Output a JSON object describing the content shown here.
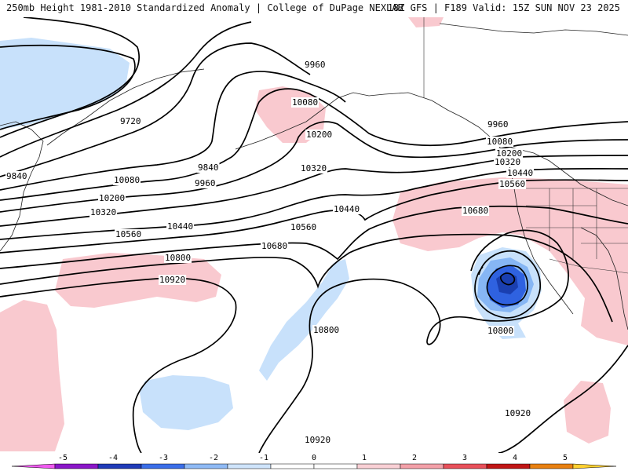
{
  "header": {
    "title": "250mb Height 1981-2010 Standardized Anomaly | College of DuPage NEXLAB",
    "run": "18Z GFS | F189 Valid: 15Z SUN NOV 23 2025"
  },
  "colors": {
    "pos1": "#f9c9cf",
    "neg1": "#c8e1fb",
    "neg2": "#86b6f4",
    "neg3": "#2f62e0",
    "neg4": "#1a3fb0"
  },
  "contour_labels": {
    "c9960a": "9960",
    "c10080a": "10080",
    "c10200a": "10200",
    "c9720": "9720",
    "c9840a": "9840",
    "c9840b": "9840",
    "c9960b": "9960",
    "c10080b": "10080",
    "c10200b": "10200",
    "c10320a": "10320",
    "c10320b": "10320",
    "c10440a": "10440",
    "c10440b": "10440",
    "c10560a": "10560",
    "c10560b": "10560",
    "c10680a": "10680",
    "c10800a": "10800",
    "c10920a": "10920",
    "c9960c": "9960",
    "c10080c": "10080",
    "c10200c": "10200",
    "c10320c": "10320",
    "c10440c": "10440",
    "c10560c": "10560",
    "c10680b": "10680",
    "c10800b": "10800",
    "c10800c": "10800",
    "c10920b": "10920",
    "c10920c": "10920"
  },
  "legend": {
    "ticks": [
      "-5",
      "-4",
      "-3",
      "-2",
      "-1",
      "0",
      "1",
      "2",
      "3",
      "4",
      "5"
    ],
    "colors": [
      "#f05af0",
      "#8a16c8",
      "#1f3bb8",
      "#3a6ee8",
      "#8fbaf5",
      "#cfe4fb",
      "#ffffff",
      "#ffffff",
      "#f9d0d5",
      "#f3a0a8",
      "#e8505a",
      "#c01515",
      "#e88010",
      "#ffd030"
    ]
  }
}
